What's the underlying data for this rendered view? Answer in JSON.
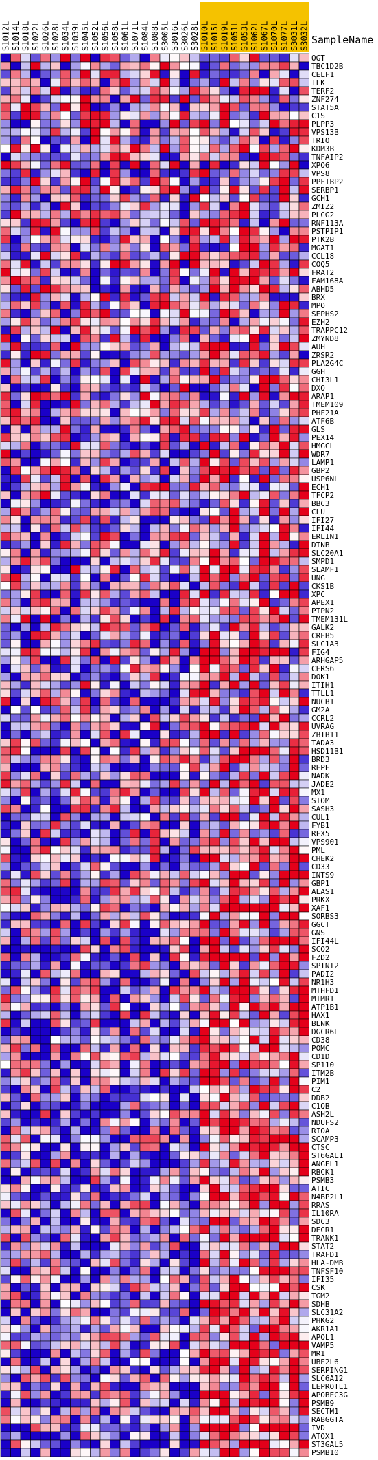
{
  "header": {
    "sample_name_label": "SampleName"
  },
  "chart_data": {
    "type": "heatmap",
    "title": "",
    "samples": [
      {
        "id": "S1012L",
        "group": "a"
      },
      {
        "id": "S1014L",
        "group": "a"
      },
      {
        "id": "S1018L",
        "group": "a"
      },
      {
        "id": "S1022L",
        "group": "a"
      },
      {
        "id": "S1026L",
        "group": "a"
      },
      {
        "id": "S1028L",
        "group": "a"
      },
      {
        "id": "S1034L",
        "group": "a"
      },
      {
        "id": "S1039L",
        "group": "a"
      },
      {
        "id": "S1045L",
        "group": "a"
      },
      {
        "id": "S1052L",
        "group": "a"
      },
      {
        "id": "S1056L",
        "group": "a"
      },
      {
        "id": "S1058L",
        "group": "a"
      },
      {
        "id": "S1061L",
        "group": "a"
      },
      {
        "id": "S1071L",
        "group": "a"
      },
      {
        "id": "S1084L",
        "group": "a"
      },
      {
        "id": "S1088L",
        "group": "a"
      },
      {
        "id": "S3005L",
        "group": "a"
      },
      {
        "id": "S3016L",
        "group": "a"
      },
      {
        "id": "S3026L",
        "group": "a"
      },
      {
        "id": "S3028L",
        "group": "a"
      },
      {
        "id": "S1010L",
        "group": "b"
      },
      {
        "id": "S1015L",
        "group": "b"
      },
      {
        "id": "S1019L",
        "group": "b"
      },
      {
        "id": "S1051L",
        "group": "b"
      },
      {
        "id": "S1053L",
        "group": "b"
      },
      {
        "id": "S1062L",
        "group": "b"
      },
      {
        "id": "S1067L",
        "group": "b"
      },
      {
        "id": "S1070L",
        "group": "b"
      },
      {
        "id": "S1077L",
        "group": "b"
      },
      {
        "id": "S3031L",
        "group": "b"
      },
      {
        "id": "S3032L",
        "group": "b"
      }
    ],
    "genes": [
      "OGT",
      "TBC1D2B",
      "CELF1",
      "ILK",
      "TERF2",
      "ZNF274",
      "STAT5A",
      "C1S",
      "PLPP3",
      "VPS13B",
      "TRIO",
      "KDM3B",
      "TNFAIP2",
      "XPO6",
      "VPS8",
      "PPFIBP2",
      "SERBP1",
      "GCH1",
      "ZMIZ2",
      "PLCG2",
      "RNF113A",
      "PSTPIP1",
      "PTK2B",
      "MGAT1",
      "CCL18",
      "COQ5",
      "FRAT2",
      "FAM168A",
      "ABHD5",
      "BRX",
      "MPO",
      "SEPHS2",
      "EZH2",
      "TRAPPC12",
      "ZMYND8",
      "AUH",
      "ZRSR2",
      "PLA2G4C",
      "GGH",
      "CHI3L1",
      "DXO",
      "ARAP1",
      "TMEM109",
      "PHF21A",
      "ATF6B",
      "GLS",
      "PEX14",
      "HMGCL",
      "WDR7",
      "LAMP1",
      "GBP2",
      "USP6NL",
      "ECH1",
      "TFCP2",
      "BBC3",
      "CLU",
      "IFI27",
      "IFI44",
      "ERLIN1",
      "DTNB",
      "SLC20A1",
      "SMPD1",
      "SLAMF1",
      "UNG",
      "CKS1B",
      "XPC",
      "APEX1",
      "PTPN2",
      "TMEM131L",
      "GALK2",
      "CREB5",
      "SLC1A3",
      "FIG4",
      "ARHGAP5",
      "CERS6",
      "DOK1",
      "ITIH1",
      "TTLL1",
      "NUCB1",
      "GM2A",
      "CCRL2",
      "UVRAG",
      "ZBTB11",
      "TADA3",
      "HSD11B1",
      "BRD3",
      "REPE",
      "NADK",
      "JADE2",
      "MX1",
      "STOM",
      "SASH3",
      "CUL1",
      "FYB1",
      "RFX5",
      "VPS901",
      "PML",
      "CHEK2",
      "CD33",
      "INTS9",
      "GBP1",
      "ALAS1",
      "PRKX",
      "XAF1",
      "SORBS3",
      "GGCT",
      "GNS",
      "IFI44L",
      "SCO2",
      "FZD2",
      "SPINT2",
      "PADI2",
      "NR1H3",
      "MTHFD1",
      "MTMR1",
      "ATP1B1",
      "HAX1",
      "BLNK",
      "DGCR6L",
      "CD38",
      "POMC",
      "CD1D",
      "SP110",
      "ITM2B",
      "PIM1",
      "C2",
      "DDB2",
      "C1QB",
      "ASH2L",
      "NDUFS2",
      "RIOA",
      "SCAMP3",
      "CTSC",
      "ST6GAL1",
      "ANGEL1",
      "RBCK1",
      "PSMB3",
      "ATIC",
      "N4BP2L1",
      "RRAS",
      "IL10RA",
      "SDC3",
      "DECR1",
      "TRANK1",
      "STAT2",
      "TRAFD1",
      "HLA-DMB",
      "TNFSF10",
      "IFI35",
      "CSK",
      "TGM2",
      "SDHB",
      "SLC31A2",
      "PHKG2",
      "AKR1A1",
      "APOL1",
      "VAMP5",
      "MR1",
      "UBE2L6",
      "SERPING1",
      "SLC6A12",
      "LEPROTL1",
      "APOBEC3G",
      "PSMB9",
      "SECTM1",
      "RABGGTA",
      "IVD",
      "ATOX1",
      "ST3GAL5",
      "PSMB10"
    ],
    "color_scale": {
      "low": "#1a00c8",
      "mid": "#ffffff",
      "high": "#e4001a"
    },
    "group_colors": {
      "a": "#ffffff",
      "b": "#f5c200"
    }
  }
}
